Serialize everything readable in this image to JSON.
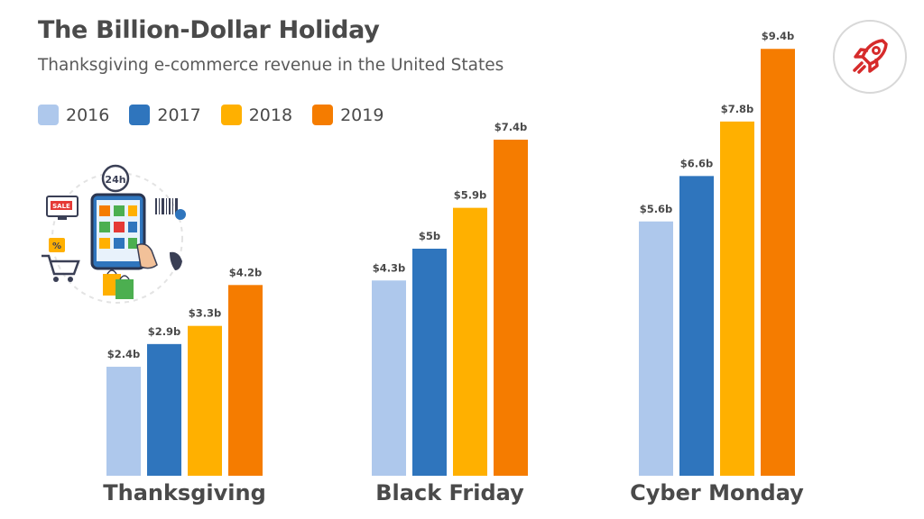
{
  "header": {
    "title": "The Billion-Dollar Holiday",
    "subtitle": "Thanksgiving e-commerce revenue in the United States"
  },
  "illustration": {
    "sale_tag": "SALE",
    "clock_label": "24h",
    "percent_tag": "%"
  },
  "logo_icon": "rocket-icon",
  "colors": {
    "2016": "#aec8ec",
    "2017": "#2f75bd",
    "2018": "#ffb000",
    "2019": "#f57c00",
    "text": "#4a4a4a",
    "badge_icon": "#d62b2b"
  },
  "chart_data": {
    "type": "bar",
    "title": "The Billion-Dollar Holiday",
    "subtitle": "Thanksgiving e-commerce revenue in the United States",
    "categories": [
      "Thanksgiving",
      "Black Friday",
      "Cyber Monday"
    ],
    "series": [
      {
        "name": "2016",
        "values": [
          2.4,
          4.3,
          5.6
        ],
        "labels": [
          "$2.4b",
          "$4.3b",
          "$5.6b"
        ]
      },
      {
        "name": "2017",
        "values": [
          2.9,
          5.0,
          6.6
        ],
        "labels": [
          "$2.9b",
          "$5b",
          "$6.6b"
        ]
      },
      {
        "name": "2018",
        "values": [
          3.3,
          5.9,
          7.8
        ],
        "labels": [
          "$3.3b",
          "$5.9b",
          "$7.8b"
        ]
      },
      {
        "name": "2019",
        "values": [
          4.2,
          7.4,
          9.4
        ],
        "labels": [
          "$4.2b",
          "$7.4b",
          "$9.4b"
        ]
      }
    ],
    "xlabel": "",
    "ylabel": "",
    "ylim": [
      0,
      9.4
    ],
    "grid": false,
    "legend": "top-left"
  }
}
